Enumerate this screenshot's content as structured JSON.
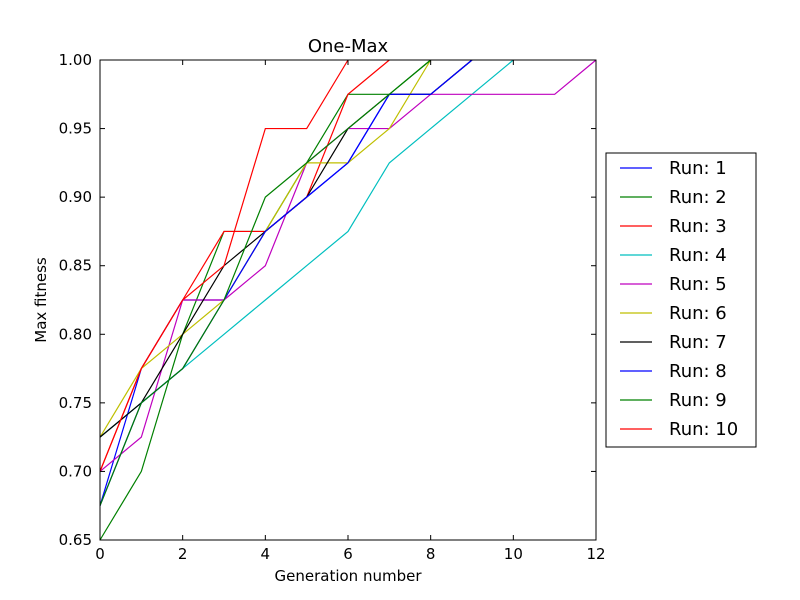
{
  "chart_data": {
    "type": "line",
    "title": "One-Max",
    "xlabel": "Generation number",
    "ylabel": "Max fitness",
    "xlim": [
      0,
      12
    ],
    "ylim": [
      0.65,
      1.0
    ],
    "xticks": [
      0,
      2,
      4,
      6,
      8,
      10,
      12
    ],
    "yticks": [
      0.65,
      0.7,
      0.75,
      0.8,
      0.85,
      0.9,
      0.95,
      1.0
    ],
    "xtick_labels": [
      "0",
      "2",
      "4",
      "6",
      "8",
      "10",
      "12"
    ],
    "ytick_labels": [
      "0.65",
      "0.70",
      "0.75",
      "0.80",
      "0.85",
      "0.90",
      "0.95",
      "1.00"
    ],
    "grid": false,
    "legend_position": "right",
    "series": [
      {
        "name": "Run: 1",
        "color": "#0000ff",
        "x": [
          0,
          1,
          2,
          3,
          4,
          5,
          6,
          7,
          8,
          9
        ],
        "y": [
          0.675,
          0.775,
          0.825,
          0.825,
          0.875,
          0.9,
          0.925,
          0.975,
          0.975,
          1.0
        ]
      },
      {
        "name": "Run: 2",
        "color": "#008000",
        "x": [
          0,
          1,
          2,
          3,
          4,
          5,
          6,
          7,
          8
        ],
        "y": [
          0.65,
          0.7,
          0.8,
          0.875,
          0.875,
          0.925,
          0.975,
          0.975,
          1.0
        ]
      },
      {
        "name": "Run: 3",
        "color": "#ff0000",
        "x": [
          0,
          1,
          2,
          3,
          4,
          5,
          6,
          7
        ],
        "y": [
          0.7,
          0.775,
          0.825,
          0.875,
          0.875,
          0.9,
          0.975,
          1.0
        ]
      },
      {
        "name": "Run: 4",
        "color": "#00bfbf",
        "x": [
          0,
          1,
          2,
          3,
          4,
          5,
          6,
          7,
          8,
          9,
          10
        ],
        "y": [
          0.725,
          0.75,
          0.775,
          0.8,
          0.825,
          0.85,
          0.875,
          0.925,
          0.95,
          0.975,
          1.0
        ]
      },
      {
        "name": "Run: 5",
        "color": "#bf00bf",
        "x": [
          0,
          1,
          2,
          3,
          4,
          5,
          6,
          7,
          8,
          9,
          10,
          11,
          12
        ],
        "y": [
          0.7,
          0.725,
          0.825,
          0.825,
          0.85,
          0.925,
          0.95,
          0.95,
          0.975,
          0.975,
          0.975,
          0.975,
          1.0
        ]
      },
      {
        "name": "Run: 6",
        "color": "#bfbf00",
        "x": [
          0,
          1,
          2,
          3,
          4,
          5,
          6,
          7,
          8
        ],
        "y": [
          0.725,
          0.775,
          0.8,
          0.825,
          0.875,
          0.925,
          0.925,
          0.95,
          1.0
        ]
      },
      {
        "name": "Run: 7",
        "color": "#000000",
        "x": [
          0,
          1,
          2,
          3,
          4,
          5,
          6,
          7,
          8,
          9
        ],
        "y": [
          0.725,
          0.75,
          0.8,
          0.85,
          0.875,
          0.9,
          0.95,
          0.975,
          0.975,
          1.0
        ]
      },
      {
        "name": "Run: 8",
        "color": "#0000ff",
        "x": [
          0,
          1,
          2,
          3,
          4,
          5,
          6,
          7,
          8,
          9
        ],
        "y": [
          0.675,
          0.75,
          0.775,
          0.825,
          0.875,
          0.9,
          0.925,
          0.975,
          0.975,
          1.0
        ]
      },
      {
        "name": "Run: 9",
        "color": "#008000",
        "x": [
          0,
          1,
          2,
          3,
          4,
          5,
          6,
          7,
          8
        ],
        "y": [
          0.675,
          0.75,
          0.775,
          0.825,
          0.9,
          0.925,
          0.95,
          0.975,
          1.0
        ]
      },
      {
        "name": "Run: 10",
        "color": "#ff0000",
        "x": [
          0,
          1,
          2,
          3,
          4,
          5,
          6
        ],
        "y": [
          0.7,
          0.775,
          0.825,
          0.85,
          0.95,
          0.95,
          1.0
        ]
      }
    ]
  }
}
